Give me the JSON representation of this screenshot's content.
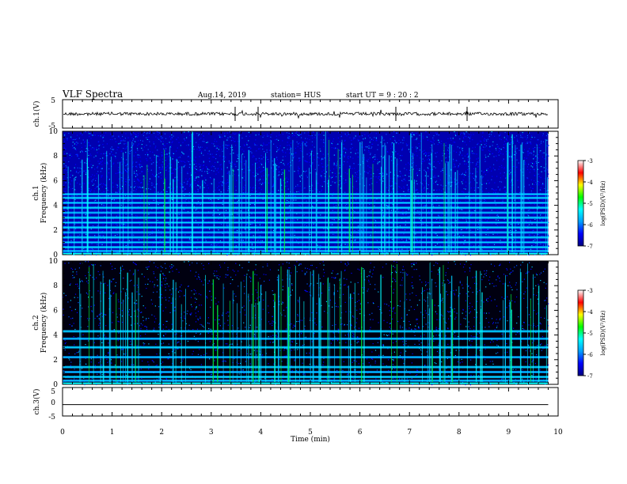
{
  "header": {
    "title": "VLF Spectra",
    "date": "Aug.14, 2019",
    "station": "station= HUS",
    "start": "start  UT =   9 : 20 : 2"
  },
  "chart_data": [
    {
      "id": "ch1-waveform",
      "type": "line",
      "ylabel": "ch.1(V)",
      "ylim": [
        -5,
        5
      ],
      "yticks": [
        "5",
        "-5"
      ],
      "xlim": [
        0,
        10
      ],
      "baseline": 0
    },
    {
      "id": "ch1-spectrogram",
      "type": "heatmap",
      "ylabel": [
        "ch.1",
        "Frequency  (kHz)"
      ],
      "ylim": [
        0,
        10
      ],
      "yticks": [
        "0",
        "2",
        "4",
        "6",
        "8",
        "10"
      ],
      "xlim": [
        0,
        10
      ],
      "colorbar": {
        "label": "log(PSD)(V²/Hz)",
        "range": [
          -7,
          -3
        ],
        "ticks": [
          "-3",
          "-4",
          "-5",
          "-6",
          "-7"
        ]
      },
      "bands_khz": [
        0.3,
        0.6,
        1.0,
        1.4,
        1.8,
        2.2,
        2.6,
        3.0,
        3.4,
        3.8,
        4.2,
        4.6,
        4.9
      ]
    },
    {
      "id": "ch2-spectrogram",
      "type": "heatmap",
      "ylabel": [
        "ch.2",
        "Frequency  (kHz)"
      ],
      "ylim": [
        0,
        10
      ],
      "yticks": [
        "0",
        "2",
        "4",
        "6",
        "8",
        "10"
      ],
      "xlim": [
        0,
        10
      ],
      "colorbar": {
        "label": "log(PSD)(V²/Hz)",
        "range": [
          -7,
          -3
        ],
        "ticks": [
          "-3",
          "-4",
          "-5",
          "-6",
          "-7"
        ]
      },
      "bands_khz": [
        0.3,
        0.6,
        1.0,
        1.4,
        2.2,
        3.0,
        3.7,
        4.3
      ]
    },
    {
      "id": "ch3-waveform",
      "type": "line",
      "ylabel": "ch.3(V)",
      "ylim": [
        -5,
        5
      ],
      "yticks": [
        "5",
        "0",
        "-5"
      ],
      "xlim": [
        0,
        10
      ],
      "baseline": -1
    }
  ],
  "xaxis": {
    "label": "Time  (min)",
    "ticks": [
      "0",
      "1",
      "2",
      "3",
      "4",
      "5",
      "6",
      "7",
      "8",
      "9",
      "10"
    ],
    "data_end_min": 9.8
  },
  "colors": {
    "colormap": [
      "#000080",
      "#0000ff",
      "#00a0ff",
      "#00ffff",
      "#00ff00",
      "#ffff00",
      "#ff0000",
      "#ffffff"
    ],
    "background": "#000066"
  }
}
